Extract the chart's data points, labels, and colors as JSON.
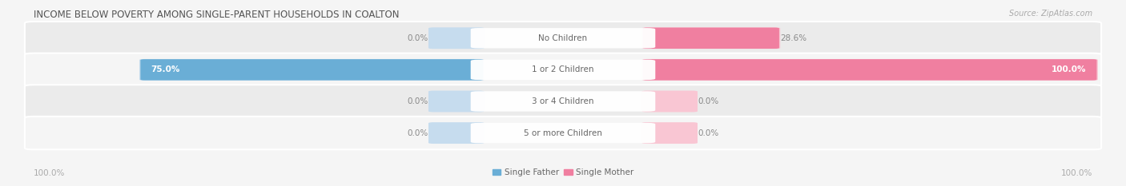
{
  "title": "INCOME BELOW POVERTY AMONG SINGLE-PARENT HOUSEHOLDS IN COALTON",
  "source": "Source: ZipAtlas.com",
  "categories": [
    "No Children",
    "1 or 2 Children",
    "3 or 4 Children",
    "5 or more Children"
  ],
  "single_father": [
    0.0,
    75.0,
    0.0,
    0.0
  ],
  "single_mother": [
    28.6,
    100.0,
    0.0,
    0.0
  ],
  "father_color": "#6aaed6",
  "mother_color": "#f07fa0",
  "father_color_light": "#c6dcee",
  "mother_color_light": "#f9c6d3",
  "row_color_odd": "#ebebeb",
  "row_color_even": "#f5f5f5",
  "bg_color": "#f5f5f5",
  "axis_label_left": "100.0%",
  "axis_label_right": "100.0%",
  "legend_father": "Single Father",
  "legend_mother": "Single Mother",
  "title_fontsize": 8.5,
  "source_fontsize": 7,
  "label_fontsize": 7.5,
  "category_fontsize": 7.5,
  "value_fontsize": 7.5,
  "max_value": 100.0,
  "ghost_min": 10.0
}
